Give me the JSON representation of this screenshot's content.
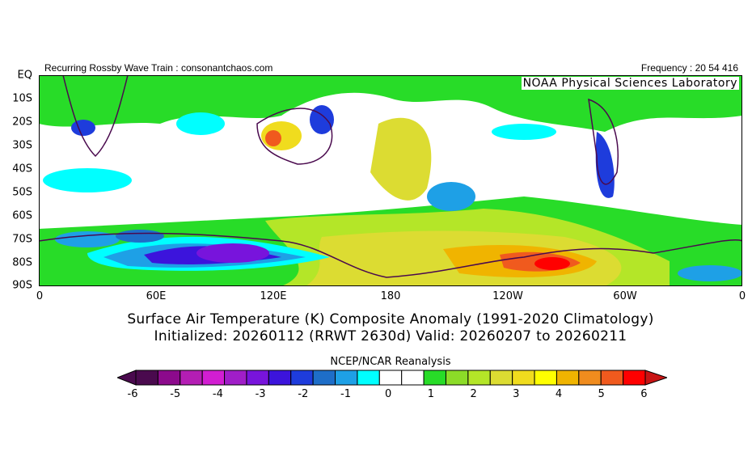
{
  "header": {
    "left": "Recurring Rossby Wave Train : consonantchaos.com",
    "right": "Frequency : 20 54 416",
    "credit": "NOAA Physical Sciences Laboratory"
  },
  "map": {
    "y_ticks": [
      "EQ",
      "10S",
      "20S",
      "30S",
      "40S",
      "50S",
      "60S",
      "70S",
      "80S",
      "90S"
    ],
    "x_ticks": [
      "0",
      "60E",
      "120E",
      "180",
      "120W",
      "60W",
      "0"
    ]
  },
  "title": {
    "line1": "Surface Air Temperature (K) Composite Anomaly (1991-2020 Climatology)",
    "line2": "Initialized: 20260112 (RRWT 2630d) Valid: 20260207 to 20260211"
  },
  "colorbar": {
    "label": "NCEP/NCAR Reanalysis",
    "ticks": [
      "-6",
      "-5",
      "-4",
      "-3",
      "-2",
      "-1",
      "0",
      "1",
      "2",
      "3",
      "4",
      "5",
      "6"
    ],
    "colors": [
      "#4a0a4e",
      "#8c0a8c",
      "#b41eb4",
      "#d21ed2",
      "#a01ec8",
      "#7814dc",
      "#3c14dc",
      "#1e3cdc",
      "#1e6ec8",
      "#1ea0e6",
      "#00ffff",
      "#ffffff",
      "#ffffff",
      "#28dc28",
      "#8cdc28",
      "#b4e628",
      "#dcdc32",
      "#f0dc1e",
      "#ffff00",
      "#f0b400",
      "#f08c1e",
      "#f05a1e",
      "#ff0000"
    ],
    "left_arrow_color": "#4a0a4e",
    "right_arrow_color": "#c81414"
  }
}
